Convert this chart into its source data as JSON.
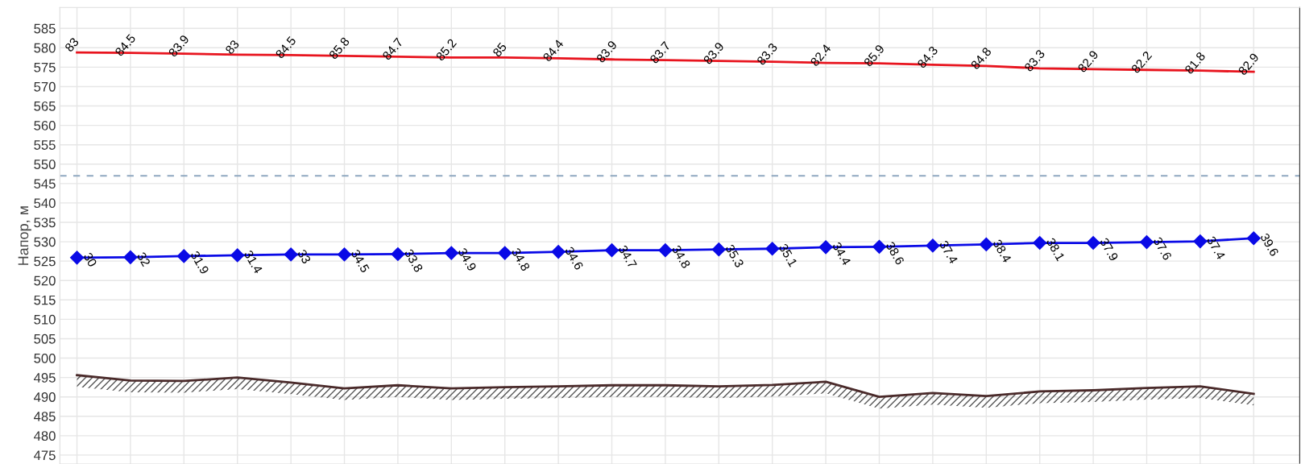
{
  "chart_data": {
    "type": "line",
    "ylabel": "Напор, м",
    "categories": [
      null,
      null,
      null,
      null,
      null,
      null,
      null,
      null,
      null,
      null,
      null,
      null,
      null,
      null,
      null,
      null,
      null,
      null,
      null,
      null,
      null,
      null,
      null
    ],
    "series": [
      {
        "color": "#e8141e",
        "marker": "none",
        "values": [
          578.8,
          578.7,
          578.5,
          578.2,
          578.1,
          577.9,
          577.7,
          577.5,
          577.5,
          577.3,
          577.0,
          576.8,
          576.6,
          576.4,
          576.1,
          576.0,
          575.6,
          575.3,
          574.7,
          574.5,
          574.3,
          574.1,
          573.8
        ]
      },
      {
        "color": "#0a0ae6",
        "marker": "diamond",
        "values": [
          525.9,
          526.0,
          526.3,
          526.5,
          526.7,
          526.7,
          526.8,
          527.1,
          527.1,
          527.4,
          527.8,
          527.8,
          528.0,
          528.2,
          528.6,
          528.7,
          529.0,
          529.3,
          529.7,
          529.7,
          529.9,
          530.1,
          530.9
        ]
      },
      {
        "color": "#4a2a2a",
        "marker": "none",
        "values": [
          495.6,
          494.2,
          494.1,
          495.0,
          493.7,
          492.2,
          493.0,
          492.2,
          492.5,
          492.7,
          493.0,
          493.0,
          492.7,
          493.1,
          493.9,
          490.0,
          491.0,
          490.2,
          491.4,
          491.7,
          492.3,
          492.7,
          490.8
        ]
      }
    ],
    "annotations": [
      "83",
      "84.5",
      "83.9",
      "83",
      "84.5",
      "85.8",
      "84.7",
      "85.2",
      "85",
      "84.4",
      "83.9",
      "83.7",
      "83.9",
      "83.3",
      "82.4",
      "85.9",
      "84.3",
      "84.8",
      "83.3",
      "82.9",
      "82.2",
      "81.8",
      "82.9",
      "30",
      "32",
      "31.9",
      "31.4",
      "33",
      "34.5",
      "33.8",
      "34.9",
      "34.8",
      "34.6",
      "34.7",
      "34.8",
      "35.3",
      "35.1",
      "34.4",
      "38.6",
      "37.4",
      "38.4",
      "38.1",
      "37.9",
      "37.6",
      "37.4",
      "39.6"
    ],
    "ref_lines": [
      {
        "axis": "y",
        "value": 547,
        "color": "#8fa8c0",
        "line_style": "dashed"
      }
    ],
    "ylim": [
      472.7,
      590.4
    ],
    "yticks": [
      475,
      480,
      485,
      490,
      495,
      500,
      505,
      510,
      515,
      520,
      525,
      530,
      535,
      540,
      545,
      550,
      555,
      560,
      565,
      570,
      575,
      580,
      585
    ],
    "grid": true,
    "tick_labels": "y"
  }
}
